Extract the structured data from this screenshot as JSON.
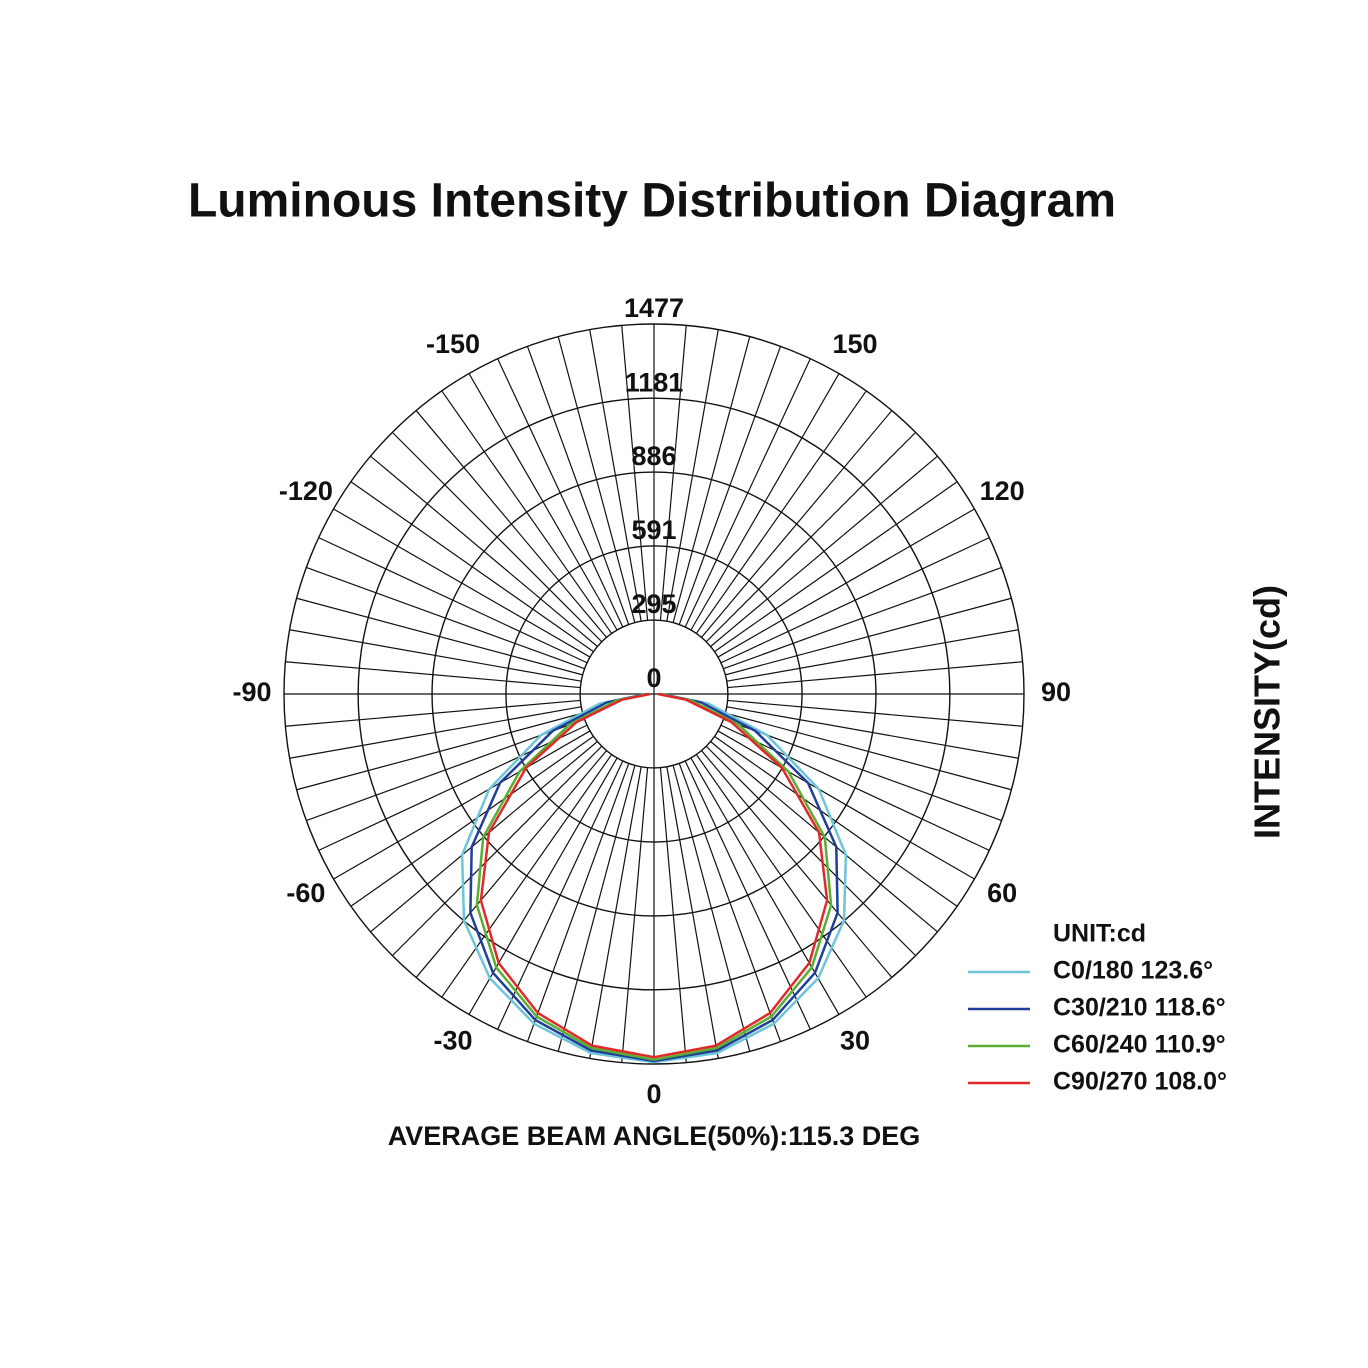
{
  "chart_data": {
    "type": "polar",
    "title": "Luminous Intensity Distribution Diagram",
    "subtitle": "AVERAGE BEAM ANGLE(50%):115.3 DEG",
    "y_label": "INTENSITY(cd)",
    "legend_title": "UNIT:cd",
    "legend": "lower right",
    "x": [
      -90,
      -80,
      -70,
      -60,
      -50,
      -40,
      -30,
      -20,
      -10,
      0,
      10,
      20,
      30,
      40,
      50,
      60,
      70,
      80,
      90
    ],
    "xticks": [
      -150,
      -120,
      -90,
      -60,
      -30,
      0,
      30,
      60,
      90,
      120,
      150
    ],
    "ylim": [
      0,
      1477
    ],
    "yticks": [
      0,
      295,
      591,
      886,
      1181,
      1477
    ],
    "grid": true,
    "series": [
      {
        "name": "C0/180 123.6°",
        "color": "#6cc5d8",
        "values": [
          30,
          220,
          480,
          760,
          1000,
          1180,
          1310,
          1400,
          1455,
          1470,
          1455,
          1400,
          1310,
          1180,
          1000,
          760,
          480,
          220,
          30
        ]
      },
      {
        "name": "C30/210 118.6°",
        "color": "#1f3f99",
        "values": [
          25,
          190,
          430,
          710,
          950,
          1140,
          1285,
          1385,
          1445,
          1465,
          1445,
          1385,
          1285,
          1140,
          950,
          710,
          430,
          190,
          25
        ]
      },
      {
        "name": "C60/240 110.9°",
        "color": "#5aae32",
        "values": [
          20,
          150,
          360,
          620,
          890,
          1100,
          1260,
          1370,
          1435,
          1460,
          1435,
          1370,
          1260,
          1100,
          890,
          620,
          360,
          150,
          20
        ]
      },
      {
        "name": "C90/270 108.0°",
        "color": "#e02a2a",
        "values": [
          15,
          130,
          330,
          590,
          860,
          1075,
          1240,
          1355,
          1425,
          1450,
          1425,
          1355,
          1240,
          1075,
          860,
          590,
          330,
          130,
          15
        ]
      }
    ]
  }
}
